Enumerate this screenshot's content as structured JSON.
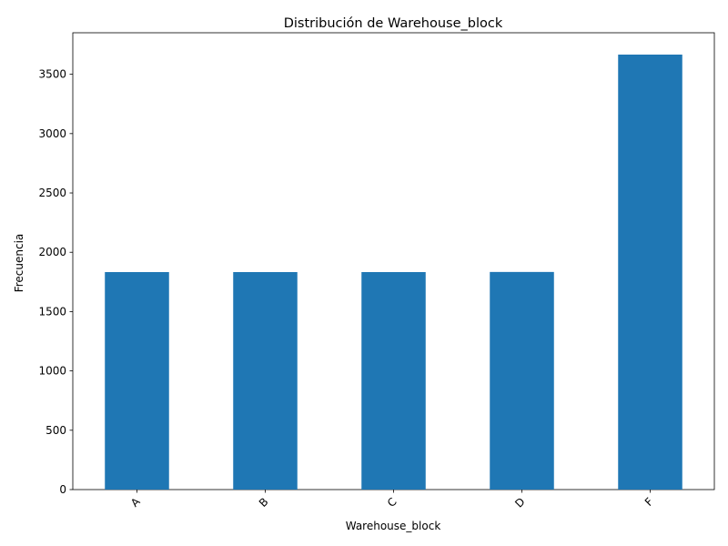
{
  "chart_data": {
    "type": "bar",
    "title": "Distribución de Warehouse_block",
    "xlabel": "Warehouse_block",
    "ylabel": "Frecuencia",
    "categories": [
      "A",
      "B",
      "C",
      "D",
      "F"
    ],
    "values": [
      1833,
      1833,
      1833,
      1834,
      3666
    ],
    "ylim": [
      0,
      3850
    ],
    "yticks": [
      0,
      500,
      1000,
      1500,
      2000,
      2500,
      3000,
      3500
    ],
    "grid": false,
    "legend": "none",
    "bar_color": "#1f77b4"
  }
}
